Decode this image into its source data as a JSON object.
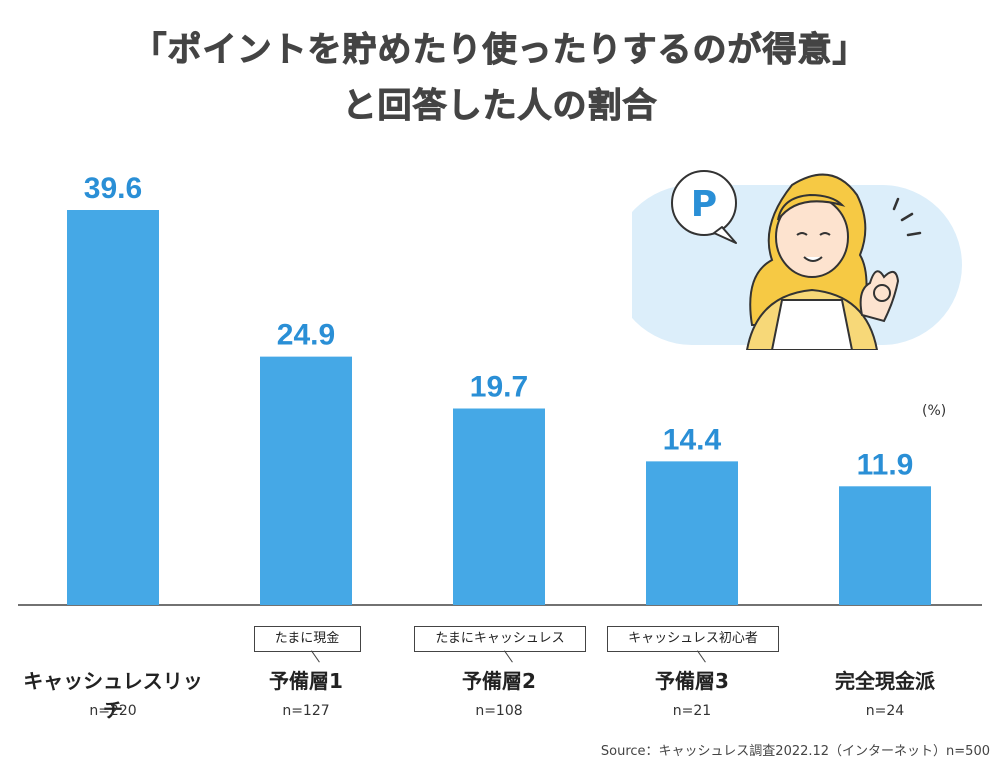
{
  "title_line1": "「ポイントを貯めたり使ったりするのが得意」",
  "title_line2": "と回答した人の割合",
  "unit": "(%)",
  "source": "Source：キャッシュレス調査2022.12（インターネット）n=500",
  "illustration_badge": "P",
  "colors": {
    "bar": "#45a8e6",
    "value_label": "#2a8fd6",
    "bubble": "#dceefa"
  },
  "chart_data": {
    "type": "bar",
    "title": "「ポイントを貯めたり使ったりするのが得意」と回答した人の割合",
    "categories": [
      "キャッシュレスリッチ",
      "予備層1",
      "予備層2",
      "予備層3",
      "完全現金派"
    ],
    "category_tags": [
      "",
      "たまに現金",
      "たまにキャッシュレス",
      "キャッシュレス初心者",
      ""
    ],
    "sample_sizes": [
      "n=220",
      "n=127",
      "n=108",
      "n=21",
      "n=24"
    ],
    "values": [
      39.6,
      24.9,
      19.7,
      14.4,
      11.9
    ],
    "value_labels": [
      "39.6",
      "24.9",
      "19.7",
      "14.4",
      "11.9"
    ],
    "ylim": [
      0,
      45
    ],
    "grid": false,
    "legend": "none"
  }
}
